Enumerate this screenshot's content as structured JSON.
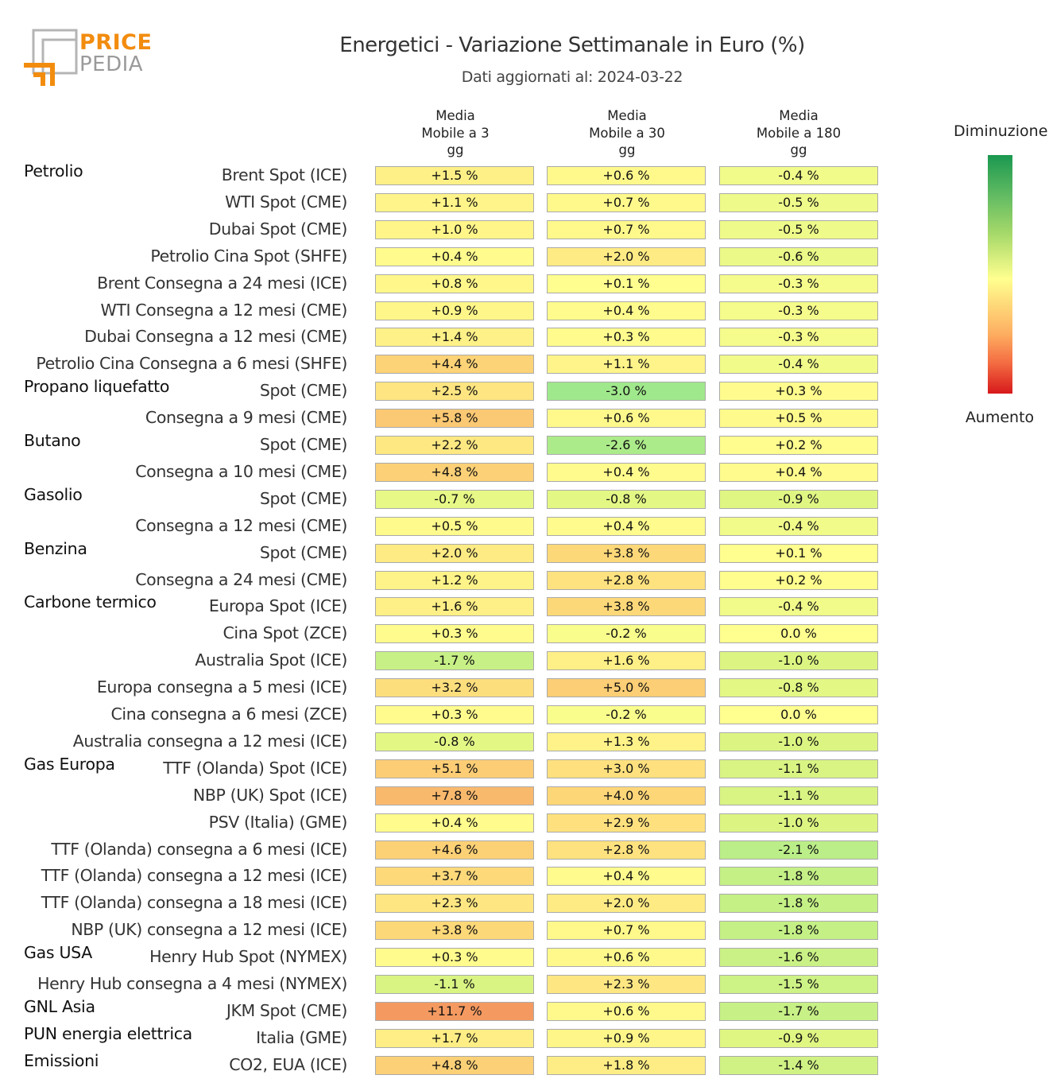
{
  "logo": {
    "line1": "PRICE",
    "line2": "PEDIA"
  },
  "title": "Energetici - Variazione Settimanale in Euro (%)",
  "subtitle": "Dati aggiornati al: 2024-03-22",
  "legend": {
    "top": "Diminuzione",
    "bottom": "Aumento"
  },
  "chart_data": {
    "type": "table",
    "columns": [
      "Media\nMobile a 3\ngg",
      "Media\nMobile a 30\ngg",
      "Media\nMobile a 180\ngg"
    ],
    "unit": "%",
    "rows": [
      {
        "group": "Petrolio",
        "label": "Brent Spot (ICE)",
        "values": [
          "+1.5 %",
          "+0.6 %",
          "-0.4 %"
        ]
      },
      {
        "group": "",
        "label": "WTI Spot (CME)",
        "values": [
          "+1.1 %",
          "+0.7 %",
          "-0.5 %"
        ]
      },
      {
        "group": "",
        "label": "Dubai Spot (CME)",
        "values": [
          "+1.0 %",
          "+0.7 %",
          "-0.5 %"
        ]
      },
      {
        "group": "",
        "label": "Petrolio Cina Spot (SHFE)",
        "values": [
          "+0.4 %",
          "+2.0 %",
          "-0.6 %"
        ]
      },
      {
        "group": "",
        "label": "Brent Consegna a 24 mesi (ICE)",
        "values": [
          "+0.8 %",
          "+0.1 %",
          "-0.3 %"
        ]
      },
      {
        "group": "",
        "label": "WTI Consegna a 12 mesi (CME)",
        "values": [
          "+0.9 %",
          "+0.4 %",
          "-0.3 %"
        ]
      },
      {
        "group": "",
        "label": "Dubai Consegna a 12 mesi (CME)",
        "values": [
          "+1.4 %",
          "+0.3 %",
          "-0.3 %"
        ]
      },
      {
        "group": "",
        "label": "Petrolio Cina Consegna a 6 mesi (SHFE)",
        "values": [
          "+4.4 %",
          "+1.1 %",
          "-0.4 %"
        ]
      },
      {
        "group": "Propano liquefatto",
        "label": "Spot (CME)",
        "values": [
          "+2.5 %",
          "-3.0 %",
          "+0.3 %"
        ]
      },
      {
        "group": "",
        "label": "Consegna a 9 mesi (CME)",
        "values": [
          "+5.8 %",
          "+0.6 %",
          "+0.5 %"
        ]
      },
      {
        "group": "Butano",
        "label": "Spot (CME)",
        "values": [
          "+2.2 %",
          "-2.6 %",
          "+0.2 %"
        ]
      },
      {
        "group": "",
        "label": "Consegna a 10 mesi (CME)",
        "values": [
          "+4.8 %",
          "+0.4 %",
          "+0.4 %"
        ]
      },
      {
        "group": "Gasolio",
        "label": "Spot (CME)",
        "values": [
          "-0.7 %",
          "-0.8 %",
          "-0.9 %"
        ]
      },
      {
        "group": "",
        "label": "Consegna a 12 mesi (CME)",
        "values": [
          "+0.5 %",
          "+0.4 %",
          "-0.4 %"
        ]
      },
      {
        "group": "Benzina",
        "label": "Spot (CME)",
        "values": [
          "+2.0 %",
          "+3.8 %",
          "+0.1 %"
        ]
      },
      {
        "group": "",
        "label": "Consegna a 24 mesi (CME)",
        "values": [
          "+1.2 %",
          "+2.8 %",
          "+0.2 %"
        ]
      },
      {
        "group": "Carbone termico",
        "label": "Europa Spot (ICE)",
        "values": [
          "+1.6 %",
          "+3.8 %",
          "-0.4 %"
        ]
      },
      {
        "group": "",
        "label": "Cina Spot (ZCE)",
        "values": [
          "+0.3 %",
          "-0.2 %",
          "0.0 %"
        ]
      },
      {
        "group": "",
        "label": "Australia Spot (ICE)",
        "values": [
          "-1.7 %",
          "+1.6 %",
          "-1.0 %"
        ]
      },
      {
        "group": "",
        "label": "Europa consegna a 5 mesi (ICE)",
        "values": [
          "+3.2 %",
          "+5.0 %",
          "-0.8 %"
        ]
      },
      {
        "group": "",
        "label": "Cina consegna a 6 mesi (ZCE)",
        "values": [
          "+0.3 %",
          "-0.2 %",
          "0.0 %"
        ]
      },
      {
        "group": "",
        "label": "Australia consegna a 12 mesi (ICE)",
        "values": [
          "-0.8 %",
          "+1.3 %",
          "-1.0 %"
        ]
      },
      {
        "group": "Gas Europa",
        "label": "TTF (Olanda) Spot (ICE)",
        "values": [
          "+5.1 %",
          "+3.0 %",
          "-1.1 %"
        ]
      },
      {
        "group": "",
        "label": "NBP (UK) Spot (ICE)",
        "values": [
          "+7.8 %",
          "+4.0 %",
          "-1.1 %"
        ]
      },
      {
        "group": "",
        "label": "PSV (Italia) (GME)",
        "values": [
          "+0.4 %",
          "+2.9 %",
          "-1.0 %"
        ]
      },
      {
        "group": "",
        "label": "TTF (Olanda) consegna a 6 mesi (ICE)",
        "values": [
          "+4.6 %",
          "+2.8 %",
          "-2.1 %"
        ]
      },
      {
        "group": "",
        "label": "TTF (Olanda) consegna a 12 mesi (ICE)",
        "values": [
          "+3.7 %",
          "+0.4 %",
          "-1.8 %"
        ]
      },
      {
        "group": "",
        "label": "TTF (Olanda) consegna a 18 mesi (ICE)",
        "values": [
          "+2.3 %",
          "+2.0 %",
          "-1.8 %"
        ]
      },
      {
        "group": "",
        "label": "NBP (UK) consegna a 12 mesi (ICE)",
        "values": [
          "+3.8 %",
          "+0.7 %",
          "-1.8 %"
        ]
      },
      {
        "group": "Gas USA",
        "label": "Henry Hub Spot (NYMEX)",
        "values": [
          "+0.3 %",
          "+0.6 %",
          "-1.6 %"
        ]
      },
      {
        "group": "",
        "label": "Henry Hub consegna a 4 mesi (NYMEX)",
        "values": [
          "-1.1 %",
          "+2.3 %",
          "-1.5 %"
        ]
      },
      {
        "group": "GNL Asia",
        "label": "JKM Spot (CME)",
        "values": [
          "+11.7 %",
          "+0.6 %",
          "-1.7 %"
        ]
      },
      {
        "group": "PUN energia elettrica",
        "label": "Italia (GME)",
        "values": [
          "+1.7 %",
          "+0.9 %",
          "-0.9 %"
        ]
      },
      {
        "group": "Emissioni",
        "label": "CO2, EUA (ICE)",
        "values": [
          "+4.8 %",
          "+1.8 %",
          "-1.4 %"
        ]
      }
    ]
  }
}
